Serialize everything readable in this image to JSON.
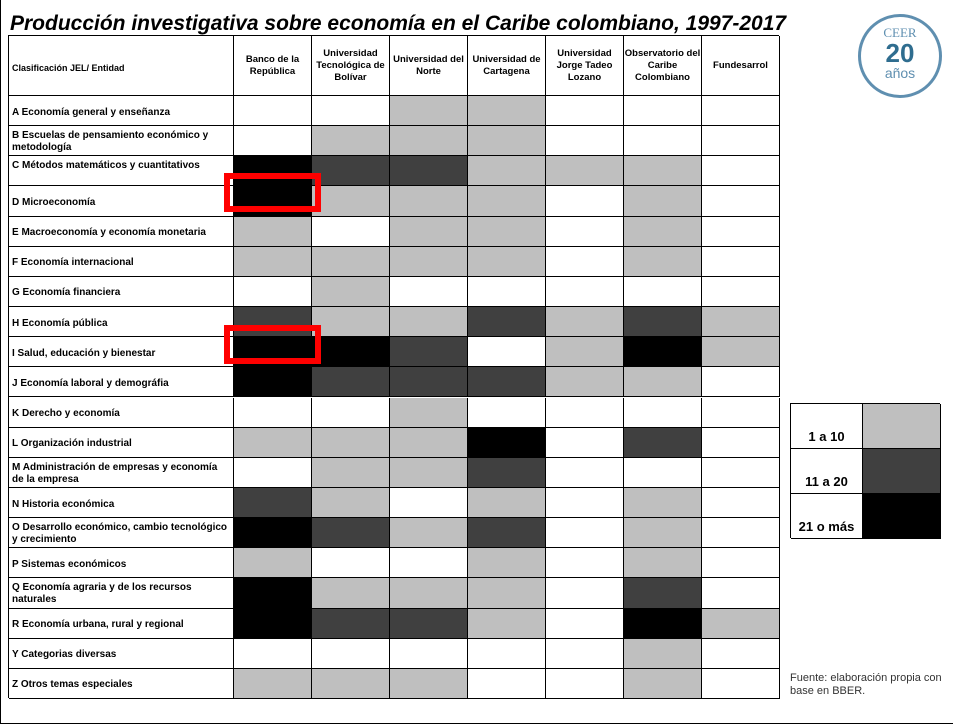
{
  "title": "Producción investigativa sobre economía en el Caribe colombiano, 1997-2017",
  "logo": {
    "top": "CEER",
    "number": "20",
    "bottom": "años"
  },
  "table": {
    "corner": "Clasificación JEL/ Entidad",
    "columns": [
      "Banco de la República",
      "Universidad Tecnológica de Bolívar",
      "Universidad del Norte",
      "Universidad de Cartagena",
      "Universidad Jorge Tadeo Lozano",
      "Observatorio del Caribe Colombiano",
      "Fundesarrol"
    ],
    "rows": [
      {
        "label": "A Economía general y enseñanza",
        "cells": [
          null,
          null,
          "1 a 10",
          "1 a 10",
          null,
          null,
          null
        ]
      },
      {
        "label": "B Escuelas de pensamiento económico y metodología",
        "cells": [
          null,
          "1 a 10",
          "1 a 10",
          "1 a 10",
          null,
          null,
          null
        ]
      },
      {
        "label": "C Métodos matemáticos y cuantitativos",
        "cells": [
          "21 o más",
          "11 a 20",
          "11 a 20",
          "1 a 10",
          "1 a 10",
          "1 a 10",
          null
        ]
      },
      {
        "label": "D Microeconomía",
        "cells": [
          "21 o más",
          "1 a 10",
          "1 a 10",
          "1 a 10",
          null,
          "1 a 10",
          null
        ]
      },
      {
        "label": "E Macroeconomía y economía monetaria",
        "cells": [
          "1 a 10",
          null,
          "1 a 10",
          "1 a 10",
          null,
          "1 a 10",
          null
        ]
      },
      {
        "label": "F Economía internacional",
        "cells": [
          "1 a 10",
          "1 a 10",
          "1 a 10",
          "1 a 10",
          null,
          "1 a 10",
          null
        ]
      },
      {
        "label": "G Economía financiera",
        "cells": [
          null,
          "1 a 10",
          null,
          null,
          null,
          null,
          null
        ]
      },
      {
        "label": "H Economía pública",
        "cells": [
          "11 a 20",
          "1 a 10",
          "1 a 10",
          "11 a 20",
          "1 a 10",
          "11 a 20",
          "1 a 10"
        ]
      },
      {
        "label": "I Salud, educación y bienestar",
        "cells": [
          "21 o más",
          "21 o más",
          "11 a 20",
          null,
          "1 a 10",
          "21 o más",
          "1 a 10"
        ]
      },
      {
        "label": "J Economía laboral y demográfia",
        "cells": [
          "21 o más",
          "11 a 20",
          "11 a 20",
          "11 a 20",
          "1 a 10",
          "1 a 10",
          null
        ]
      },
      {
        "label": "K Derecho y economía",
        "cells": [
          null,
          null,
          "1 a 10",
          null,
          null,
          null,
          null
        ]
      },
      {
        "label": "L Organización industrial",
        "cells": [
          "1 a 10",
          "1 a 10",
          "1 a 10",
          "21 o más",
          null,
          "11 a 20",
          null
        ]
      },
      {
        "label": "M Administración de empresas y economía de la empresa",
        "cells": [
          null,
          "1 a 10",
          "1 a 10",
          "11 a 20",
          null,
          null,
          null
        ]
      },
      {
        "label": "N Historia económica",
        "cells": [
          "11 a 20",
          "1 a 10",
          null,
          "1 a 10",
          null,
          "1 a 10",
          null
        ]
      },
      {
        "label": "O Desarrollo económico, cambio tecnológico y crecimiento",
        "cells": [
          "21 o más",
          "11 a 20",
          "1 a 10",
          "11 a 20",
          null,
          "1 a 10",
          null
        ]
      },
      {
        "label": "P Sistemas económicos",
        "cells": [
          "1 a 10",
          null,
          null,
          "1 a 10",
          null,
          "1 a 10",
          null
        ]
      },
      {
        "label": "Q Economía agraria y de los recursos naturales",
        "cells": [
          "21 o más",
          "1 a 10",
          "1 a 10",
          "1 a 10",
          null,
          "11 a 20",
          null
        ]
      },
      {
        "label": "R Economía urbana, rural y regional",
        "cells": [
          "21 o más",
          "11 a 20",
          "11 a 20",
          "1 a 10",
          null,
          "21 o más",
          "1 a 10"
        ]
      },
      {
        "label": "Y Categorias diversas",
        "cells": [
          null,
          null,
          null,
          null,
          null,
          "1 a 10",
          null
        ]
      },
      {
        "label": "Z Otros temas especiales",
        "cells": [
          "1 a 10",
          "1 a 10",
          "1 a 10",
          null,
          null,
          "1 a 10",
          null
        ]
      }
    ]
  },
  "legend": [
    {
      "label": "1 a 10",
      "color": "#bfbfbf"
    },
    {
      "label": "11 a 20",
      "color": "#404040"
    },
    {
      "label": "21 o más",
      "color": "#000000"
    }
  ],
  "source": "Fuente: elaboración propia con base en BBER."
}
